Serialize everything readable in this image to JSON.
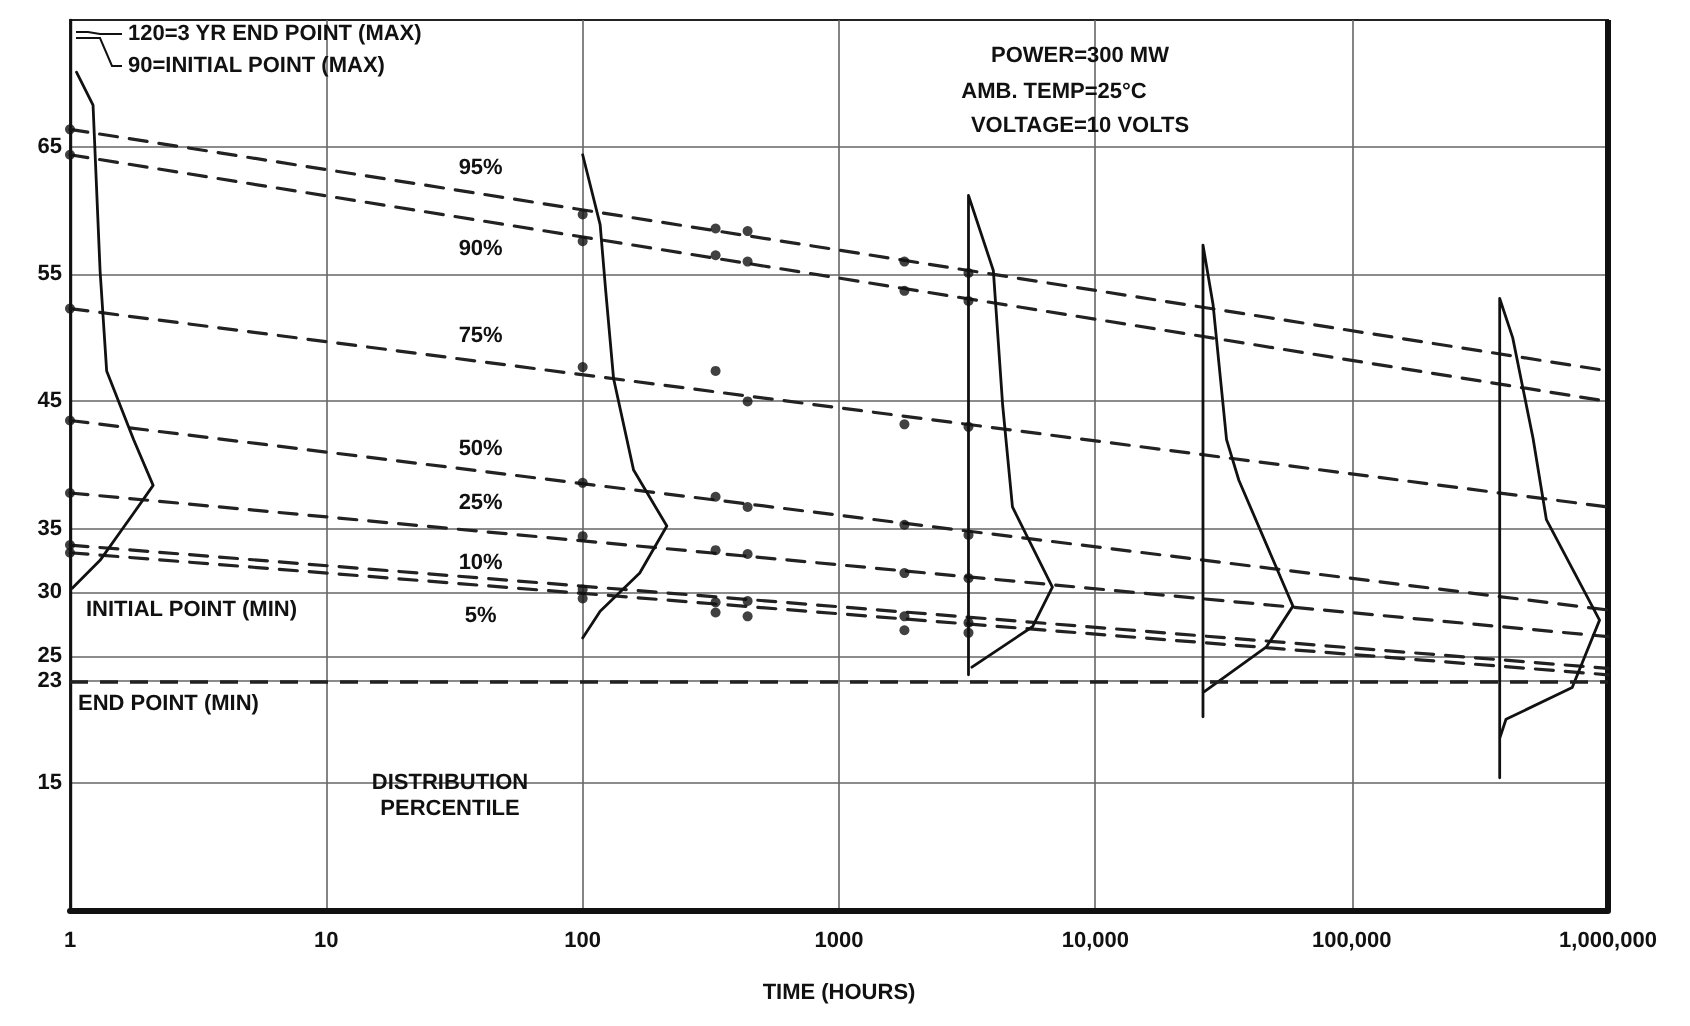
{
  "chart_data": {
    "type": "line",
    "xlabel": "TIME (HOURS)",
    "log": "x",
    "xlim": [
      1,
      1000000
    ],
    "xticks": [
      1,
      10,
      100,
      1000,
      {
        "value": 10000,
        "label": "10,000"
      },
      {
        "value": 100000,
        "label": "100,000"
      },
      {
        "value": 1000000,
        "label": "1,000,000"
      }
    ],
    "ylim": [
      5,
      75
    ],
    "yticks": [
      15,
      23,
      25,
      30,
      35,
      45,
      55,
      65
    ],
    "grid": true,
    "legend": false,
    "series": [
      {
        "name": "95%",
        "color": "#222222",
        "line_style": "dashed",
        "marker": "none",
        "x": [
          1,
          1000000
        ],
        "values": [
          66.4,
          47.4
        ]
      },
      {
        "name": "90%",
        "color": "#222222",
        "line_style": "dashed",
        "marker": "none",
        "x": [
          1,
          1000000
        ],
        "values": [
          64.4,
          45.0
        ]
      },
      {
        "name": "75%",
        "color": "#222222",
        "line_style": "dashed",
        "marker": "none",
        "x": [
          1,
          1000000
        ],
        "values": [
          52.3,
          36.7
        ]
      },
      {
        "name": "50%",
        "color": "#222222",
        "line_style": "dashed",
        "marker": "none",
        "x": [
          1,
          1000000
        ],
        "values": [
          43.5,
          28.6
        ]
      },
      {
        "name": "25%",
        "color": "#222222",
        "line_style": "dashed",
        "marker": "none",
        "x": [
          1,
          1000000
        ],
        "values": [
          37.8,
          26.5
        ]
      },
      {
        "name": "10%",
        "color": "#222222",
        "line_style": "dashed",
        "marker": "none",
        "x": [
          1,
          1000000
        ],
        "values": [
          33.7,
          24.0
        ]
      },
      {
        "name": "5%",
        "color": "#222222",
        "line_style": "dashed",
        "marker": "none",
        "x": [
          1,
          1000000
        ],
        "values": [
          33.1,
          23.5
        ]
      },
      {
        "type": "scatter",
        "color": "#111111",
        "marker": "circle",
        "x": [
          1,
          1,
          1,
          1,
          1,
          1,
          1,
          100,
          100,
          100,
          100,
          100,
          100,
          100,
          330,
          330,
          330,
          330,
          330,
          330,
          330,
          440,
          440,
          440,
          440,
          440,
          440,
          440,
          1800,
          1800,
          1800,
          1800,
          1800,
          1800,
          1800,
          3200,
          3200,
          3200,
          3200,
          3200,
          3200,
          3200
        ],
        "values": [
          66.4,
          64.4,
          52.3,
          43.5,
          37.8,
          33.7,
          33.1,
          59.7,
          57.6,
          47.7,
          38.6,
          34.4,
          30.2,
          29.5,
          58.6,
          56.5,
          47.4,
          37.5,
          33.3,
          29.2,
          28.4,
          58.4,
          56.0,
          45.0,
          36.7,
          33.0,
          29.3,
          28.1,
          56.0,
          53.7,
          43.2,
          35.3,
          31.5,
          28.1,
          27.0,
          55.1,
          52.9,
          43.0,
          34.5,
          31.1,
          27.6,
          26.8
        ]
      },
      {
        "color": "#111111",
        "line_style": "solid",
        "marker": "none",
        "x": [
          1.06,
          1.23,
          1.31,
          1.39,
          1.77,
          2.11,
          1.77,
          1.31,
          1.02
        ],
        "values": [
          70.9,
          68.3,
          55.3,
          47.4,
          42.0,
          38.4,
          36.2,
          32.5,
          30.3
        ]
      },
      {
        "color": "#111111",
        "line_style": "solid",
        "marker": "none",
        "x": [
          100,
          117,
          123,
          132,
          158,
          213,
          167,
          117,
          100
        ],
        "values": [
          64.4,
          58.9,
          53.7,
          46.8,
          39.6,
          35.2,
          31.5,
          28.5,
          26.4
        ]
      },
      {
        "color": "#111111",
        "line_style": "solid",
        "marker": "none",
        "x": [
          3200,
          3200,
          4000,
          4350,
          4750,
          6800,
          5700,
          3300
        ],
        "values": [
          23.5,
          61.2,
          55.3,
          44.7,
          36.7,
          30.4,
          27.3,
          24.1
        ]
      },
      {
        "color": "#111111",
        "line_style": "solid",
        "marker": "none",
        "x": [
          26300,
          26300,
          28800,
          32500,
          36300,
          59000,
          46500,
          26300
        ],
        "values": [
          20.2,
          57.3,
          52.6,
          42.0,
          38.8,
          28.9,
          25.7,
          22.1
        ]
      },
      {
        "color": "#111111",
        "line_style": "solid",
        "marker": "none",
        "x": [
          378000,
          378000,
          425000,
          510000,
          575000,
          927000,
          725000,
          400000,
          378000
        ],
        "values": [
          15.4,
          53.1,
          50.0,
          42.1,
          35.7,
          27.8,
          22.5,
          20.0,
          18.5
        ]
      }
    ],
    "ref_lines": [
      {
        "axis": "y",
        "value": 23,
        "label": "END POINT (MIN)",
        "color": "#222222",
        "line_style": "dashed"
      }
    ],
    "annotations": [
      "120=3 YR END POINT (MAX)",
      "90=INITIAL POINT (MAX)",
      "POWER=300 MW",
      "AMB. TEMP=25°C",
      "VOLTAGE=10 VOLTS",
      {
        "text": "INITIAL POINT (MIN)",
        "x": 1,
        "y": 30
      },
      "DISTRIBUTION PERCENTILE"
    ]
  }
}
